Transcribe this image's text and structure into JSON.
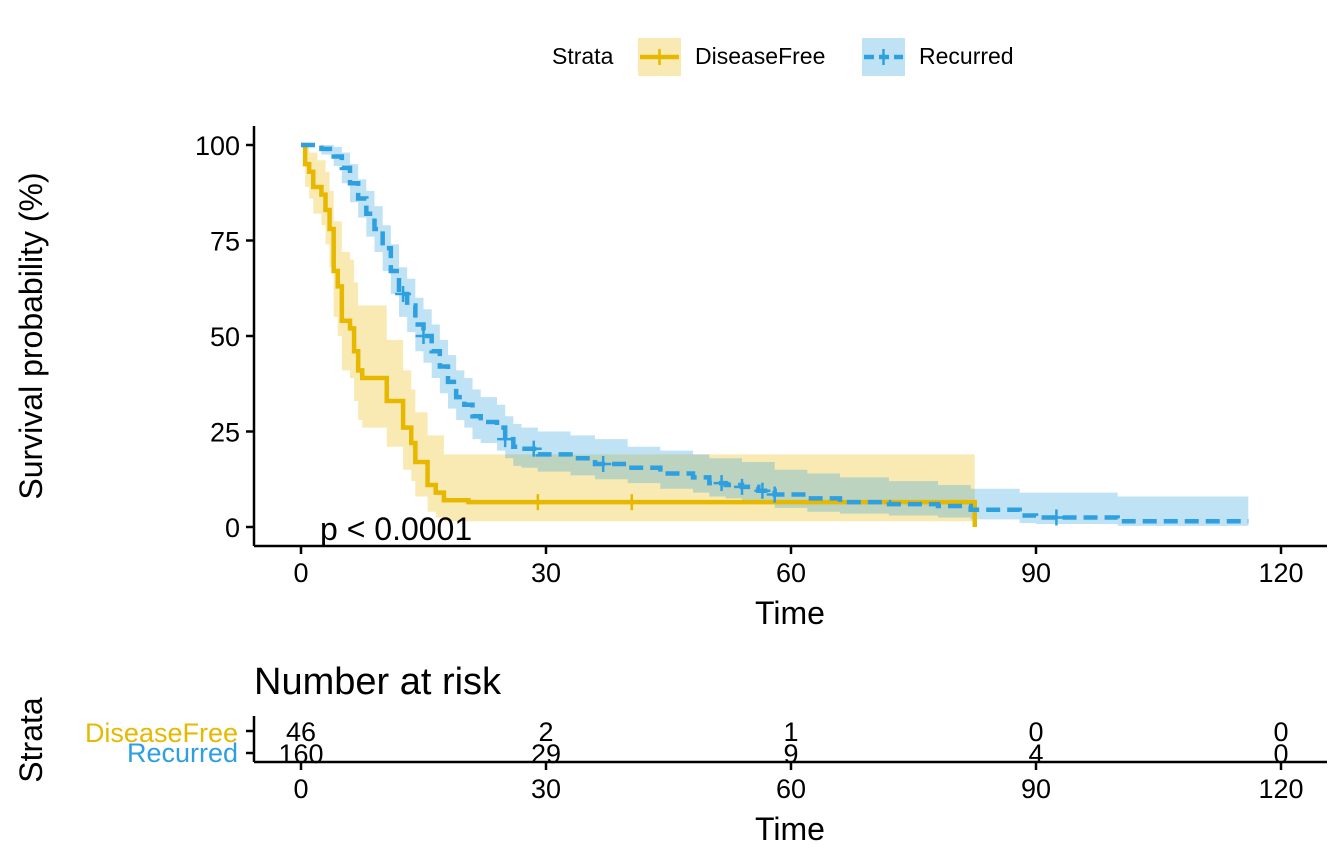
{
  "chart_data": {
    "type": "line",
    "subtype": "kaplan-meier",
    "xlabel": "Time",
    "ylabel": "Survival probability (%)",
    "xlim": [
      0,
      120
    ],
    "ylim": [
      0,
      100
    ],
    "xticks": [
      0,
      30,
      60,
      90,
      120
    ],
    "yticks": [
      0,
      25,
      50,
      75,
      100
    ],
    "grid": false,
    "legend": {
      "title": "Strata",
      "placement": "top"
    },
    "annotation": "p < 0.0001",
    "series": [
      {
        "name": "DiseaseFree",
        "color": "#E7B800",
        "linestyle": "solid",
        "steps": [
          [
            0,
            100
          ],
          [
            0.5,
            95
          ],
          [
            1,
            93
          ],
          [
            1.5,
            89
          ],
          [
            2.5,
            87
          ],
          [
            3,
            83
          ],
          [
            3.5,
            78
          ],
          [
            4,
            67
          ],
          [
            4.5,
            63
          ],
          [
            5,
            54
          ],
          [
            6,
            52
          ],
          [
            6.5,
            46
          ],
          [
            7,
            41
          ],
          [
            7.5,
            39
          ],
          [
            10.5,
            33
          ],
          [
            12.5,
            26
          ],
          [
            13.5,
            22
          ],
          [
            14,
            17
          ],
          [
            15.5,
            11
          ],
          [
            16.5,
            9
          ],
          [
            17.5,
            7
          ],
          [
            20.5,
            6.5
          ],
          [
            82.5,
            0
          ]
        ],
        "ci_upper": [
          [
            0,
            100
          ],
          [
            0.5,
            100
          ],
          [
            1,
            98
          ],
          [
            2,
            96
          ],
          [
            3,
            93
          ],
          [
            3.5,
            88
          ],
          [
            4,
            80
          ],
          [
            5,
            72
          ],
          [
            6,
            70
          ],
          [
            6.5,
            64
          ],
          [
            7,
            58
          ],
          [
            10.5,
            49
          ],
          [
            12.5,
            41
          ],
          [
            13.5,
            36
          ],
          [
            14,
            30
          ],
          [
            15.5,
            24
          ],
          [
            17.5,
            19
          ],
          [
            82.5,
            19
          ]
        ],
        "ci_lower": [
          [
            0,
            100
          ],
          [
            0.5,
            89
          ],
          [
            1,
            86
          ],
          [
            1.5,
            82
          ],
          [
            2.5,
            79
          ],
          [
            3,
            74
          ],
          [
            3.5,
            68
          ],
          [
            4,
            55
          ],
          [
            4.5,
            50
          ],
          [
            5,
            41
          ],
          [
            6,
            39
          ],
          [
            6.5,
            33
          ],
          [
            7,
            28
          ],
          [
            7.5,
            26
          ],
          [
            10.5,
            21
          ],
          [
            12.5,
            15
          ],
          [
            13.5,
            12
          ],
          [
            14,
            8
          ],
          [
            15.5,
            4
          ],
          [
            16.5,
            2.5
          ],
          [
            17.5,
            1.5
          ],
          [
            82.5,
            1.5
          ]
        ],
        "censor_times": [
          29,
          40.5
        ]
      },
      {
        "name": "Recurred",
        "color": "#2E9FDF",
        "linestyle": "dashed",
        "steps": [
          [
            0,
            100
          ],
          [
            2.5,
            99
          ],
          [
            4,
            97
          ],
          [
            5,
            94
          ],
          [
            6,
            90
          ],
          [
            7,
            86
          ],
          [
            8,
            82
          ],
          [
            9,
            78
          ],
          [
            10,
            73
          ],
          [
            11,
            67
          ],
          [
            12,
            61
          ],
          [
            13,
            58
          ],
          [
            14,
            53
          ],
          [
            15,
            50
          ],
          [
            16,
            46
          ],
          [
            17,
            42
          ],
          [
            18,
            38
          ],
          [
            19,
            34
          ],
          [
            20,
            32
          ],
          [
            21,
            29
          ],
          [
            22,
            27.5
          ],
          [
            24,
            26
          ],
          [
            25,
            23
          ],
          [
            26,
            21
          ],
          [
            27,
            20.5
          ],
          [
            29,
            19
          ],
          [
            33,
            18
          ],
          [
            36,
            16.5
          ],
          [
            40,
            15.5
          ],
          [
            44,
            14
          ],
          [
            48,
            13
          ],
          [
            50,
            11.5
          ],
          [
            52,
            11
          ],
          [
            54,
            10.5
          ],
          [
            56,
            9.5
          ],
          [
            58,
            8.5
          ],
          [
            62,
            7.5
          ],
          [
            66,
            6.5
          ],
          [
            72,
            6
          ],
          [
            78,
            5.5
          ],
          [
            82,
            4.5
          ],
          [
            88,
            3
          ],
          [
            90,
            2.5
          ],
          [
            100,
            1.5
          ],
          [
            116,
            1.5
          ]
        ],
        "ci_upper": [
          [
            0,
            100
          ],
          [
            2.5,
            100
          ],
          [
            4,
            99.5
          ],
          [
            5,
            98
          ],
          [
            6,
            95
          ],
          [
            7,
            91
          ],
          [
            8,
            88
          ],
          [
            9,
            84
          ],
          [
            10,
            79
          ],
          [
            11,
            74
          ],
          [
            12,
            68
          ],
          [
            13,
            65
          ],
          [
            14,
            60
          ],
          [
            15,
            57
          ],
          [
            16,
            53
          ],
          [
            17,
            49
          ],
          [
            18,
            45
          ],
          [
            19,
            41
          ],
          [
            20,
            39
          ],
          [
            21,
            36
          ],
          [
            22,
            34
          ],
          [
            24,
            32
          ],
          [
            25,
            29
          ],
          [
            26,
            27
          ],
          [
            27,
            26
          ],
          [
            29,
            25
          ],
          [
            33,
            24
          ],
          [
            36,
            23
          ],
          [
            40,
            21
          ],
          [
            44,
            20
          ],
          [
            48,
            19
          ],
          [
            50,
            18
          ],
          [
            54,
            17
          ],
          [
            58,
            15
          ],
          [
            62,
            14
          ],
          [
            66,
            13
          ],
          [
            72,
            12
          ],
          [
            78,
            11
          ],
          [
            82,
            10
          ],
          [
            88,
            9
          ],
          [
            90,
            9
          ],
          [
            100,
            8
          ],
          [
            116,
            8
          ]
        ],
        "ci_lower": [
          [
            0,
            100
          ],
          [
            2.5,
            97.5
          ],
          [
            4,
            94.5
          ],
          [
            5,
            90
          ],
          [
            6,
            85
          ],
          [
            7,
            81
          ],
          [
            8,
            76
          ],
          [
            9,
            72
          ],
          [
            10,
            67
          ],
          [
            11,
            61
          ],
          [
            12,
            55
          ],
          [
            13,
            51
          ],
          [
            14,
            46
          ],
          [
            15,
            43
          ],
          [
            16,
            39
          ],
          [
            17,
            35
          ],
          [
            18,
            31
          ],
          [
            19,
            28
          ],
          [
            20,
            26
          ],
          [
            21,
            23
          ],
          [
            22,
            22
          ],
          [
            24,
            20
          ],
          [
            25,
            18
          ],
          [
            26,
            16
          ],
          [
            27,
            15.5
          ],
          [
            29,
            14.5
          ],
          [
            33,
            13.5
          ],
          [
            36,
            12.5
          ],
          [
            40,
            11.5
          ],
          [
            44,
            10
          ],
          [
            48,
            9
          ],
          [
            50,
            8
          ],
          [
            52,
            7.5
          ],
          [
            54,
            7
          ],
          [
            56,
            6
          ],
          [
            58,
            5
          ],
          [
            62,
            4
          ],
          [
            66,
            3.5
          ],
          [
            72,
            3
          ],
          [
            78,
            2.5
          ],
          [
            82,
            2
          ],
          [
            88,
            1
          ],
          [
            90,
            0.8
          ],
          [
            100,
            0.3
          ],
          [
            116,
            0.3
          ]
        ],
        "censor_times": [
          12.5,
          15,
          25,
          28.5,
          37,
          51.5,
          54,
          56.5,
          58,
          92.5
        ]
      }
    ],
    "risk_table": {
      "title": "Number at risk",
      "ylabel": "Strata",
      "xlabel": "Time",
      "times": [
        0,
        30,
        60,
        90,
        120
      ],
      "rows": [
        {
          "name": "DiseaseFree",
          "color": "#E7B800",
          "values": [
            46,
            2,
            1,
            0,
            0
          ]
        },
        {
          "name": "Recurred",
          "color": "#2E9FDF",
          "values": [
            160,
            29,
            9,
            4,
            0
          ]
        }
      ]
    }
  }
}
